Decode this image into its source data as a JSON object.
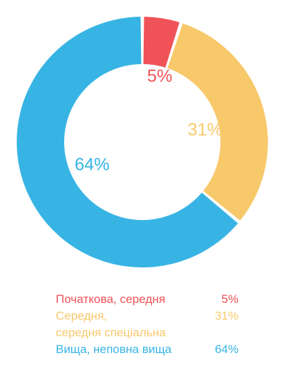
{
  "chart_data": {
    "type": "pie",
    "variant": "donut",
    "categories": [
      "Початкова, середня",
      "Середня,\nсередня спеціальна",
      "Вища, неповна вища"
    ],
    "values": [
      5,
      31,
      64
    ],
    "value_labels": [
      "5%",
      "31%",
      "64%"
    ],
    "colors": [
      "#ef5258",
      "#f8c96b",
      "#37b4e4"
    ],
    "legend_placement": "bottom"
  }
}
